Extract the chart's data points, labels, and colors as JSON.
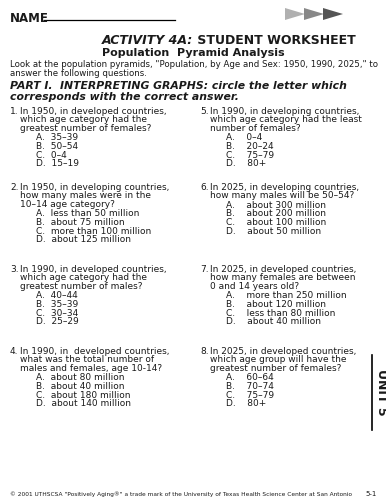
{
  "name_label": "NAME",
  "title_italic": "ACTIVITY 4A:",
  "title_normal": " STUDENT WORKSHEET",
  "subtitle": "Population  Pyramid Analysis",
  "intro": "Look at the population pyramids, \"Population, by Age and Sex: 1950, 1990, 2025,\" to\nanswer the following questions.",
  "part_header_1": "PART I.  INTERPRETING GRAPHS: circle the letter which",
  "part_header_2": "corresponds with the correct answer.",
  "questions_left": [
    {
      "num": "1.",
      "lines": [
        "In 1950, in developed countries,",
        "which age category had the",
        "greatest number of females?"
      ],
      "choices": [
        "A.  35–39",
        "B.  50–54",
        "C.  0–4",
        "D.  15–19"
      ]
    },
    {
      "num": "2.",
      "lines": [
        "In 1950, in developing countries,",
        "how many males were in the",
        "10–14 age category?"
      ],
      "choices": [
        "A.  less than 50 million",
        "B.  about 75 million",
        "C.  more than 100 million",
        "D.  about 125 million"
      ]
    },
    {
      "num": "3.",
      "lines": [
        "In 1990, in developed countries,",
        "which age category had the",
        "greatest number of males?"
      ],
      "choices": [
        "A.  40–44",
        "B.  35–39",
        "C.  30–34",
        "D.  25–29"
      ]
    },
    {
      "num": "4.",
      "lines": [
        "In 1990, in  developed countries,",
        "what was the total number of",
        "males and females, age 10-14?"
      ],
      "choices": [
        "A.  about 80 million",
        "B.  about 40 million",
        "C.  about 180 million",
        "D.  about 140 million"
      ]
    }
  ],
  "questions_right": [
    {
      "num": "5.",
      "lines": [
        "In 1990, in developing countries,",
        "which age category had the least",
        "number of females?"
      ],
      "choices": [
        "A.    0–4",
        "B.    20–24",
        "C.    75–79",
        "D.    80+"
      ]
    },
    {
      "num": "6.",
      "lines": [
        "In 2025, in developing countries,",
        "how many males will be 50–54?"
      ],
      "choices": [
        "A.    about 300 million",
        "B.    about 200 million",
        "C.    about 100 million",
        "D.    about 50 million"
      ]
    },
    {
      "num": "7.",
      "lines": [
        "In 2025, in developed countries,",
        "how many females are between",
        "0 and 14 years old?"
      ],
      "choices": [
        "A.    more than 250 million",
        "B.    about 120 million",
        "C.    less than 80 million",
        "D.    about 40 million"
      ]
    },
    {
      "num": "8.",
      "lines": [
        "In 2025, in developed countries,",
        "which age group will have the",
        "greatest number of females?"
      ],
      "choices": [
        "A.    60–64",
        "B.    70–74",
        "C.    75–79",
        "D.    80+"
      ]
    }
  ],
  "footer": "© 2001 UTHSCSA \"Positively Aging®\" a trade mark of the University of Texas Health Science Center at San Antonio",
  "page_num": "5-1",
  "unit_label": "UNIT 5",
  "bg_color": "#ffffff",
  "text_color": "#1a1a1a",
  "arrow_colors": [
    "#b0b0b0",
    "#888888",
    "#555555"
  ]
}
